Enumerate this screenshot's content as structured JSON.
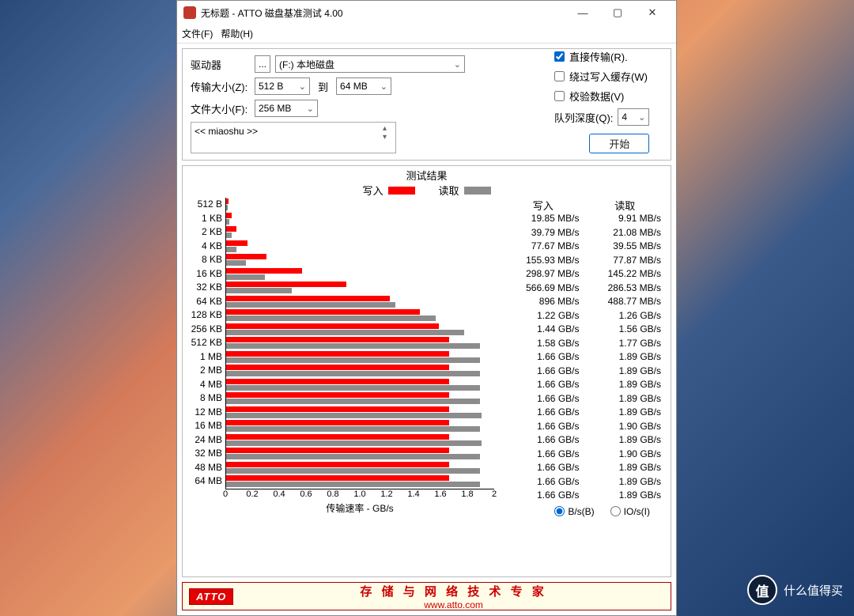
{
  "window": {
    "title": "无标题 - ATTO 磁盘基准测试 4.00",
    "menu_file": "文件(F)",
    "menu_help": "帮助(H)"
  },
  "controls": {
    "drive_label": "驱动器",
    "browse_label": "...",
    "drive_value": "(F:) 本地磁盘",
    "transfer_size_label": "传输大小(Z):",
    "transfer_min": "512 B",
    "transfer_to": "到",
    "transfer_max": "64 MB",
    "file_size_label": "文件大小(F):",
    "file_size_value": "256 MB",
    "direct_io_label": "直接传输(R).",
    "direct_io_checked": true,
    "bypass_cache_label": "绕过写入缓存(W)",
    "bypass_cache_checked": false,
    "verify_label": "校验数据(V)",
    "verify_checked": false,
    "queue_depth_label": "队列深度(Q):",
    "queue_depth_value": "4",
    "start_label": "开始",
    "description_text": "<< miaoshu >>"
  },
  "results": {
    "title": "测试结果",
    "legend_write": "写入",
    "legend_read": "读取",
    "write_color": "#ff0000",
    "read_color": "#8c8c8c",
    "x_label": "传输速率 - GB/s",
    "x_max": 2.0,
    "x_ticks": [
      "0",
      "0.2",
      "0.4",
      "0.6",
      "0.8",
      "1.0",
      "1.2",
      "1.4",
      "1.6",
      "1.8",
      "2"
    ],
    "col_write_header": "写入",
    "col_read_header": "读取",
    "rows": [
      {
        "size": "512 B",
        "write_gb": 0.01985,
        "read_gb": 0.00991,
        "write_txt": "19.85 MB/s",
        "read_txt": "9.91 MB/s"
      },
      {
        "size": "1 KB",
        "write_gb": 0.03979,
        "read_gb": 0.02108,
        "write_txt": "39.79 MB/s",
        "read_txt": "21.08 MB/s"
      },
      {
        "size": "2 KB",
        "write_gb": 0.07767,
        "read_gb": 0.03955,
        "write_txt": "77.67 MB/s",
        "read_txt": "39.55 MB/s"
      },
      {
        "size": "4 KB",
        "write_gb": 0.15593,
        "read_gb": 0.07787,
        "write_txt": "155.93 MB/s",
        "read_txt": "77.87 MB/s"
      },
      {
        "size": "8 KB",
        "write_gb": 0.29897,
        "read_gb": 0.14522,
        "write_txt": "298.97 MB/s",
        "read_txt": "145.22 MB/s"
      },
      {
        "size": "16 KB",
        "write_gb": 0.56669,
        "read_gb": 0.28653,
        "write_txt": "566.69 MB/s",
        "read_txt": "286.53 MB/s"
      },
      {
        "size": "32 KB",
        "write_gb": 0.896,
        "read_gb": 0.48877,
        "write_txt": "896 MB/s",
        "read_txt": "488.77 MB/s"
      },
      {
        "size": "64 KB",
        "write_gb": 1.22,
        "read_gb": 1.26,
        "write_txt": "1.22 GB/s",
        "read_txt": "1.26 GB/s"
      },
      {
        "size": "128 KB",
        "write_gb": 1.44,
        "read_gb": 1.56,
        "write_txt": "1.44 GB/s",
        "read_txt": "1.56 GB/s"
      },
      {
        "size": "256 KB",
        "write_gb": 1.58,
        "read_gb": 1.77,
        "write_txt": "1.58 GB/s",
        "read_txt": "1.77 GB/s"
      },
      {
        "size": "512 KB",
        "write_gb": 1.66,
        "read_gb": 1.89,
        "write_txt": "1.66 GB/s",
        "read_txt": "1.89 GB/s"
      },
      {
        "size": "1 MB",
        "write_gb": 1.66,
        "read_gb": 1.89,
        "write_txt": "1.66 GB/s",
        "read_txt": "1.89 GB/s"
      },
      {
        "size": "2 MB",
        "write_gb": 1.66,
        "read_gb": 1.89,
        "write_txt": "1.66 GB/s",
        "read_txt": "1.89 GB/s"
      },
      {
        "size": "4 MB",
        "write_gb": 1.66,
        "read_gb": 1.89,
        "write_txt": "1.66 GB/s",
        "read_txt": "1.89 GB/s"
      },
      {
        "size": "8 MB",
        "write_gb": 1.66,
        "read_gb": 1.89,
        "write_txt": "1.66 GB/s",
        "read_txt": "1.89 GB/s"
      },
      {
        "size": "12 MB",
        "write_gb": 1.66,
        "read_gb": 1.9,
        "write_txt": "1.66 GB/s",
        "read_txt": "1.90 GB/s"
      },
      {
        "size": "16 MB",
        "write_gb": 1.66,
        "read_gb": 1.89,
        "write_txt": "1.66 GB/s",
        "read_txt": "1.89 GB/s"
      },
      {
        "size": "24 MB",
        "write_gb": 1.66,
        "read_gb": 1.9,
        "write_txt": "1.66 GB/s",
        "read_txt": "1.90 GB/s"
      },
      {
        "size": "32 MB",
        "write_gb": 1.66,
        "read_gb": 1.89,
        "write_txt": "1.66 GB/s",
        "read_txt": "1.89 GB/s"
      },
      {
        "size": "48 MB",
        "write_gb": 1.66,
        "read_gb": 1.89,
        "write_txt": "1.66 GB/s",
        "read_txt": "1.89 GB/s"
      },
      {
        "size": "64 MB",
        "write_gb": 1.66,
        "read_gb": 1.89,
        "write_txt": "1.66 GB/s",
        "read_txt": "1.89 GB/s"
      }
    ],
    "unit_bs_label": "B/s(B)",
    "unit_ios_label": "IO/s(I)",
    "unit_selected": "bs"
  },
  "footer": {
    "logo_text": "ATTO",
    "line1": "存 储 与 网 络 技 术 专 家",
    "line2": "www.atto.com"
  },
  "watermark": {
    "badge": "值",
    "text": "什么值得买"
  }
}
